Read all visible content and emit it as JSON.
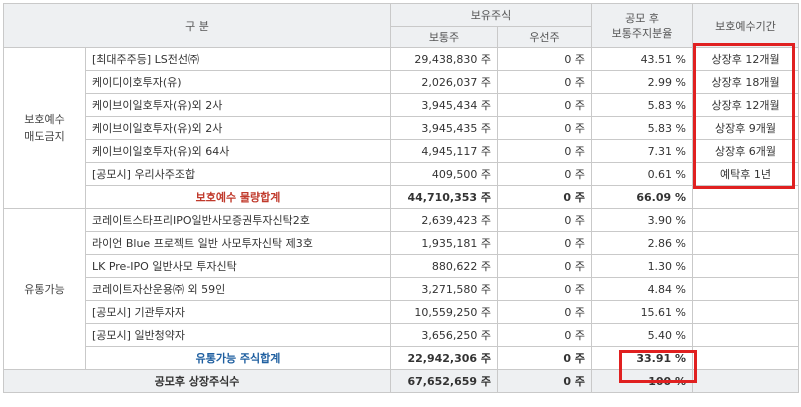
{
  "headers": {
    "category": "구    분",
    "holding": "보유주식",
    "common": "보통주",
    "preferred": "우선주",
    "ratio_line1": "공모 후",
    "ratio_line2": "보통주지분율",
    "lockup": "보호예수기간"
  },
  "groups": {
    "protected": {
      "label": "보호예수\n매도금지",
      "rows": [
        {
          "name": "[최대주주등] LS전선㈜",
          "common": "29,438,830 주",
          "preferred": "0 주",
          "ratio": "43.51 %",
          "lockup": "상장후 12개월"
        },
        {
          "name": "케이디이호투자(유)",
          "common": "2,026,037 주",
          "preferred": "0 주",
          "ratio": "2.99 %",
          "lockup": "상장후 18개월"
        },
        {
          "name": "케이브이일호투자(유)외 2사",
          "common": "3,945,434 주",
          "preferred": "0 주",
          "ratio": "5.83 %",
          "lockup": "상장후 12개월"
        },
        {
          "name": "케이브이일호투자(유)외 2사",
          "common": "3,945,435 주",
          "preferred": "0 주",
          "ratio": "5.83 %",
          "lockup": "상장후 9개월"
        },
        {
          "name": "케이브이일호투자(유)외 64사",
          "common": "4,945,117 주",
          "preferred": "0 주",
          "ratio": "7.31 %",
          "lockup": "상장후 6개월"
        },
        {
          "name": "[공모시] 우리사주조합",
          "common": "409,500 주",
          "preferred": "0 주",
          "ratio": "0.61 %",
          "lockup": "예탁후 1년"
        }
      ],
      "subtotal": {
        "label": "보호예수 물량합계",
        "common": "44,710,353 주",
        "preferred": "0 주",
        "ratio": "66.09 %"
      }
    },
    "tradable": {
      "label": "유통가능",
      "rows": [
        {
          "name": "코레이트스타프리IPO일반사모증권투자신탁2호",
          "common": "2,639,423 주",
          "preferred": "0 주",
          "ratio": "3.90 %"
        },
        {
          "name": "라이언 Blue 프로젝트 일반 사모투자신탁 제3호",
          "common": "1,935,181 주",
          "preferred": "0 주",
          "ratio": "2.86 %"
        },
        {
          "name": "LK Pre-IPO 일반사모 투자신탁",
          "common": "880,622 주",
          "preferred": "0 주",
          "ratio": "1.30 %"
        },
        {
          "name": "코레이트자산운용㈜ 외 59인",
          "common": "3,271,580 주",
          "preferred": "0 주",
          "ratio": "4.84 %"
        },
        {
          "name": "[공모시] 기관투자자",
          "common": "10,559,250 주",
          "preferred": "0 주",
          "ratio": "15.61 %"
        },
        {
          "name": "[공모시] 일반청약자",
          "common": "3,656,250 주",
          "preferred": "0 주",
          "ratio": "5.40 %"
        }
      ],
      "subtotal": {
        "label": "유통가능 주식합계",
        "common": "22,942,306 주",
        "preferred": "0 주",
        "ratio": "33.91 %"
      }
    }
  },
  "total": {
    "label": "공모후 상장주식수",
    "common": "67,652,659 주",
    "preferred": "0 주",
    "ratio": "100 %"
  },
  "colors": {
    "highlight": "#e02020",
    "header_bg": "#eef0f2",
    "protected_subtotal": "#c0392b",
    "tradable_subtotal": "#1f5fa0"
  }
}
